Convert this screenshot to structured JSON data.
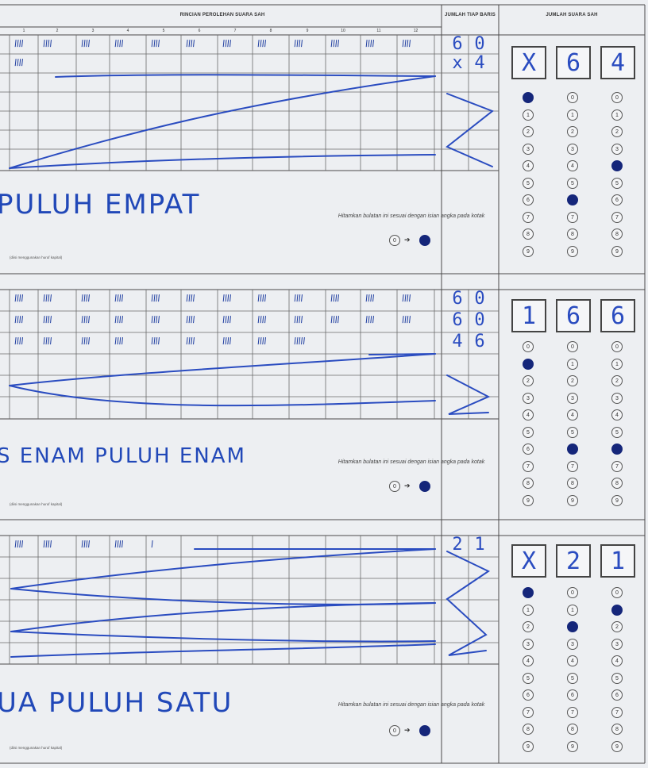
{
  "header": {
    "rincian": "RINCIAN PEROLEHAN SUARA SAH",
    "jumlah_tiap_baris": "JUMLAH TIAP BARIS",
    "jumlah_suara_sah": "JUMLAH SUARA SAH"
  },
  "column_numbers": [
    "1",
    "2",
    "3",
    "4",
    "5",
    "6",
    "7",
    "8",
    "9",
    "10",
    "11",
    "12"
  ],
  "instructions": {
    "hitamkan": "Hitamkan bulatan ini sesuai dengan isian angka pada kotak",
    "diisi": "(diisi menggunakan huruf kapital)",
    "legend_digit": "0"
  },
  "sections": [
    {
      "rows": [
        {
          "tallies": [
            "𝍸",
            "𝍸",
            "𝍸",
            "𝍸",
            "𝍸",
            "𝍸",
            "𝍸",
            "𝍸",
            "𝍸",
            "𝍸",
            "𝍸",
            "𝍸"
          ],
          "row_total": [
            "6",
            "0"
          ]
        },
        {
          "tallies": [
            "||||",
            "",
            "",
            "",
            "",
            "",
            "",
            "",
            "",
            "",
            "",
            ""
          ],
          "row_total": [
            "x",
            "4"
          ]
        }
      ],
      "total_boxes": [
        "X",
        "6",
        "4"
      ],
      "filled": [
        0,
        6,
        4
      ],
      "words": "PULUH EMPAT"
    },
    {
      "rows": [
        {
          "tallies": [
            "𝍸",
            "𝍸",
            "𝍸",
            "𝍸",
            "𝍸",
            "𝍸",
            "𝍸",
            "𝍸",
            "𝍸",
            "𝍸",
            "𝍸",
            "𝍸"
          ],
          "row_total": [
            "6",
            "0"
          ]
        },
        {
          "tallies": [
            "𝍸",
            "𝍸",
            "𝍸",
            "𝍸",
            "𝍸",
            "𝍸",
            "𝍸",
            "𝍸",
            "𝍸",
            "𝍸",
            "𝍸",
            "𝍸"
          ],
          "row_total": [
            "6",
            "0"
          ]
        },
        {
          "tallies": [
            "𝍸",
            "𝍸",
            "𝍸",
            "𝍸",
            "𝍸",
            "𝍸",
            "𝍸",
            "𝍸",
            "𝍸|",
            "",
            "",
            ""
          ],
          "row_total": [
            "4",
            "6"
          ]
        }
      ],
      "total_boxes": [
        "1",
        "6",
        "6"
      ],
      "filled": [
        1,
        6,
        6
      ],
      "words": "S ENAM PULUH ENAM"
    },
    {
      "rows": [
        {
          "tallies": [
            "𝍸",
            "𝍸",
            "𝍸",
            "𝍸",
            "|",
            "",
            "",
            "",
            "",
            "",
            "",
            ""
          ],
          "row_total": [
            "2",
            "1"
          ]
        }
      ],
      "total_boxes": [
        "X",
        "2",
        "1"
      ],
      "filled": [
        0,
        2,
        1
      ],
      "words": "UA PULUH SATU"
    }
  ],
  "bubble_digits": [
    "0",
    "1",
    "2",
    "3",
    "4",
    "5",
    "6",
    "7",
    "8",
    "9"
  ],
  "colors": {
    "ink": "#2148b8",
    "filled": "#15267a",
    "line": "#555555"
  }
}
